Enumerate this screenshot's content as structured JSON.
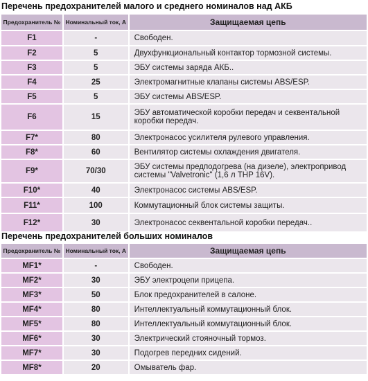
{
  "small": {
    "title": "Перечень предохранителей малого и среднего номиналов над АКБ",
    "headers": {
      "fuse": "Предохранитель №",
      "rating": "Номинальный ток, А",
      "circuit": "Защищаемая цепь"
    },
    "rows": [
      {
        "fuse": "F1",
        "rating": "-",
        "circuit": "Свободен."
      },
      {
        "fuse": "F2",
        "rating": "5",
        "circuit": "Двухфункциональный контактор тормозной системы."
      },
      {
        "fuse": "F3",
        "rating": "5",
        "circuit": "ЭБУ системы заряда АКБ.."
      },
      {
        "fuse": "F4",
        "rating": "25",
        "circuit": "Электромагнитные клапаны системы ABS/ESP."
      },
      {
        "fuse": "F5",
        "rating": "5",
        "circuit": "ЭБУ системы ABS/ESP."
      },
      {
        "fuse": "F6",
        "rating": "15",
        "circuit": "ЭБУ автоматической коробки передач и секвентальной коробки передач."
      },
      {
        "fuse": "F7*",
        "rating": "80",
        "circuit": "Электронасос усилителя рулевого управления."
      },
      {
        "fuse": "F8*",
        "rating": "60",
        "circuit": "Вентилятор системы охлаждения двигателя."
      },
      {
        "fuse": "F9*",
        "rating": "70/30",
        "circuit": "ЭБУ системы предподогрева (на дизеле), электропривод системы \"Valvetronic\" (1,6 л THP 16V)."
      },
      {
        "fuse": "F10*",
        "rating": "40",
        "circuit": "Электронасос системы ABS/ESP."
      },
      {
        "fuse": "F11*",
        "rating": "100",
        "circuit": "Коммутационный блок системы защиты."
      },
      {
        "fuse": "F12*",
        "rating": "30",
        "circuit": "Электронасос секвентальной коробки передач.."
      }
    ]
  },
  "large": {
    "title": "Перечень предохранителей больших номиналов",
    "headers": {
      "fuse": "Предохранитель №",
      "rating": "Номинальный ток, А",
      "circuit": "Защищаемая цепь"
    },
    "rows": [
      {
        "fuse": "MF1*",
        "rating": "-",
        "circuit": "Свободен."
      },
      {
        "fuse": "MF2*",
        "rating": "30",
        "circuit": "ЭБУ электроцепи прицепа."
      },
      {
        "fuse": "MF3*",
        "rating": "50",
        "circuit": "Блок предохранителей в салоне."
      },
      {
        "fuse": "MF4*",
        "rating": "80",
        "circuit": "Интеллектуальный коммутационный блок."
      },
      {
        "fuse": "MF5*",
        "rating": "80",
        "circuit": "Интеллектуальный коммутационный блок."
      },
      {
        "fuse": "MF6*",
        "rating": "30",
        "circuit": "Электрический стояночный тормоз."
      },
      {
        "fuse": "MF7*",
        "rating": "30",
        "circuit": "Подогрев передних сидений."
      },
      {
        "fuse": "MF8*",
        "rating": "20",
        "circuit": "Омыватель фар."
      }
    ]
  }
}
